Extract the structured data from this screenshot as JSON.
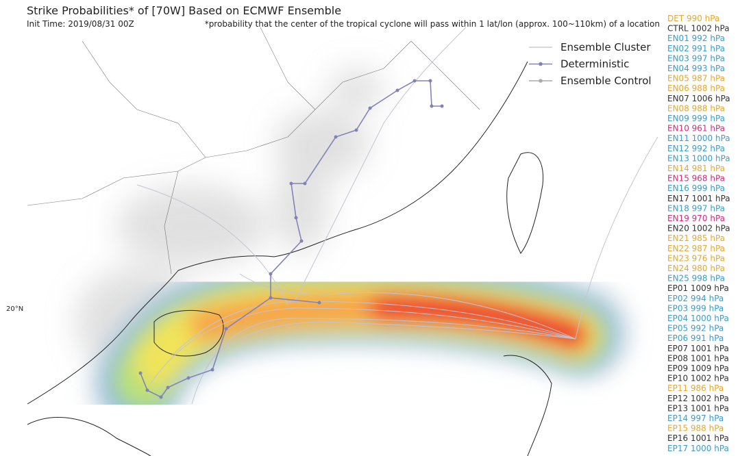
{
  "header": {
    "title": "Strike Probabilities* of [70W] Based on ECMWF Ensemble",
    "init_time": "Init Time: 2019/08/31 00Z",
    "footnote": "*probability that the center of the tropical cyclone will pass within 1 lat/lon (approx. 100~110km) of a location"
  },
  "legend": [
    {
      "label": "Ensemble Cluster",
      "color": "#cccccc"
    },
    {
      "label": "Deterministic",
      "color": "#8282ba"
    },
    {
      "label": "Ensemble Control",
      "color": "#aaaaaa"
    }
  ],
  "map": {
    "lat_label": "20°N"
  },
  "members": [
    {
      "text": "DET 990 hPa",
      "color": "#e6a72e"
    },
    {
      "text": "CTRL 1002 hPa",
      "color": "#333333"
    },
    {
      "text": "EN01 992 hPa",
      "color": "#3a9ccc"
    },
    {
      "text": "EN02 991 hPa",
      "color": "#3a9ccc"
    },
    {
      "text": "EN03 997 hPa",
      "color": "#3a9ccc"
    },
    {
      "text": "EN04 993 hPa",
      "color": "#3a9ccc"
    },
    {
      "text": "EN05 987 hPa",
      "color": "#e6a72e"
    },
    {
      "text": "EN06 988 hPa",
      "color": "#e6a72e"
    },
    {
      "text": "EN07 1006 hPa",
      "color": "#333333"
    },
    {
      "text": "EN08 988 hPa",
      "color": "#e6a72e"
    },
    {
      "text": "EN09 999 hPa",
      "color": "#3a9ccc"
    },
    {
      "text": "EN10 961 hPa",
      "color": "#d42a7c"
    },
    {
      "text": "EN11 1000 hPa",
      "color": "#3a9ccc"
    },
    {
      "text": "EN12 992 hPa",
      "color": "#3a9ccc"
    },
    {
      "text": "EN13 1000 hPa",
      "color": "#3a9ccc"
    },
    {
      "text": "EN14 981 hPa",
      "color": "#e6a72e"
    },
    {
      "text": "EN15 968 hPa",
      "color": "#d42a7c"
    },
    {
      "text": "EN16 999 hPa",
      "color": "#3a9ccc"
    },
    {
      "text": "EN17 1001 hPa",
      "color": "#333333"
    },
    {
      "text": "EN18 997 hPa",
      "color": "#3a9ccc"
    },
    {
      "text": "EN19 970 hPa",
      "color": "#d42a7c"
    },
    {
      "text": "EN20 1002 hPa",
      "color": "#333333"
    },
    {
      "text": "EN21 985 hPa",
      "color": "#e6a72e"
    },
    {
      "text": "EN22 987 hPa",
      "color": "#e6a72e"
    },
    {
      "text": "EN23 976 hPa",
      "color": "#e6a72e"
    },
    {
      "text": "EN24 980 hPa",
      "color": "#e6a72e"
    },
    {
      "text": "EN25 998 hPa",
      "color": "#3a9ccc"
    },
    {
      "text": "EP01 1009 hPa",
      "color": "#333333"
    },
    {
      "text": "EP02 994 hPa",
      "color": "#3a9ccc"
    },
    {
      "text": "EP03 999 hPa",
      "color": "#3a9ccc"
    },
    {
      "text": "EP04 1000 hPa",
      "color": "#3a9ccc"
    },
    {
      "text": "EP05 992 hPa",
      "color": "#3a9ccc"
    },
    {
      "text": "EP06 991 hPa",
      "color": "#3a9ccc"
    },
    {
      "text": "EP07 1001 hPa",
      "color": "#333333"
    },
    {
      "text": "EP08 1001 hPa",
      "color": "#333333"
    },
    {
      "text": "EP09 1009 hPa",
      "color": "#333333"
    },
    {
      "text": "EP10 1002 hPa",
      "color": "#333333"
    },
    {
      "text": "EP11 986 hPa",
      "color": "#e6a72e"
    },
    {
      "text": "EP12 1002 hPa",
      "color": "#333333"
    },
    {
      "text": "EP13 1001 hPa",
      "color": "#333333"
    },
    {
      "text": "EP14 997 hPa",
      "color": "#3a9ccc"
    },
    {
      "text": "EP15 988 hPa",
      "color": "#e6a72e"
    },
    {
      "text": "EP16 1001 hPa",
      "color": "#333333"
    },
    {
      "text": "EP17 1000 hPa",
      "color": "#3a9ccc"
    }
  ]
}
